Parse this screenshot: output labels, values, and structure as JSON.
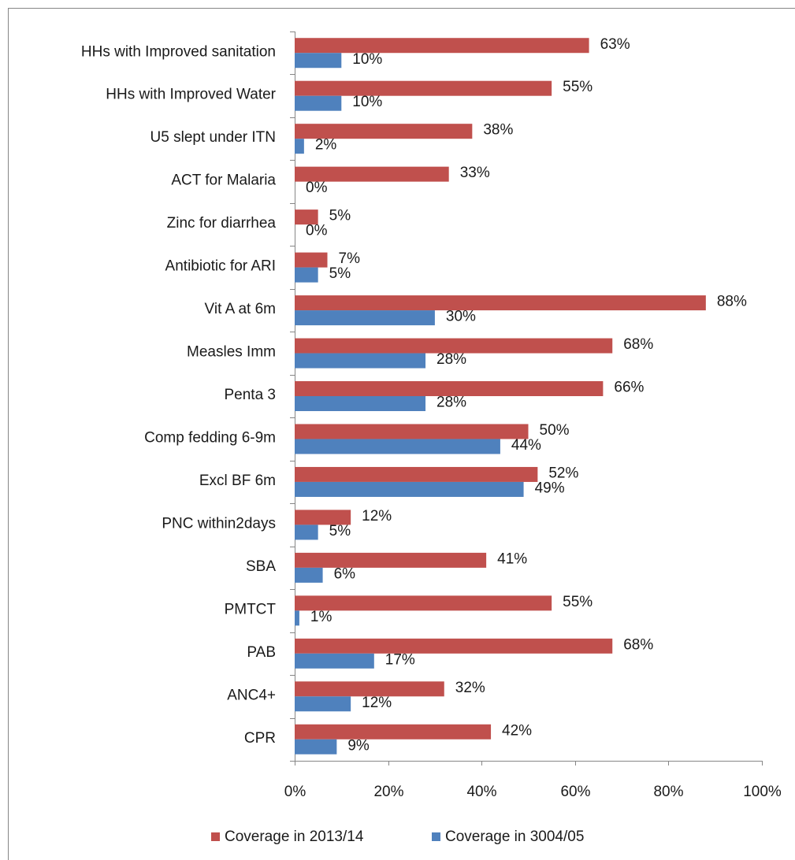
{
  "chart_data": {
    "type": "bar",
    "orientation": "horizontal",
    "categories": [
      "HHs with Improved sanitation",
      "HHs with Improved Water",
      "U5 slept under ITN",
      "ACT for Malaria",
      "Zinc for diarrhea",
      "Antibiotic for ARI",
      "Vit A at 6m",
      "Measles Imm",
      "Penta 3",
      "Comp fedding 6-9m",
      "Excl BF 6m",
      "PNC within2days",
      "SBA",
      "PMTCT",
      "PAB",
      "ANC4+",
      "CPR"
    ],
    "series": [
      {
        "name": "Coverage in 2013/14",
        "color": "#c0504d",
        "values": [
          63,
          55,
          38,
          33,
          5,
          7,
          88,
          68,
          66,
          50,
          52,
          12,
          41,
          55,
          68,
          32,
          42
        ],
        "value_labels": [
          "63%",
          "55%",
          "38%",
          "33%",
          "5%",
          "7%",
          "88%",
          "68%",
          "66%",
          "50%",
          "52%",
          "12%",
          "41%",
          "55%",
          "68%",
          "32%",
          "42%"
        ]
      },
      {
        "name": "Coverage in 3004/05",
        "color": "#4f81bd",
        "values": [
          10,
          10,
          2,
          0,
          0,
          5,
          30,
          28,
          28,
          44,
          49,
          5,
          6,
          1,
          17,
          12,
          9
        ],
        "value_labels": [
          "10%",
          "10%",
          "2%",
          "0%",
          "0%",
          "5%",
          "30%",
          "28%",
          "28%",
          "44%",
          "49%",
          "5%",
          "6%",
          "1%",
          "17%",
          "12%",
          "9%"
        ]
      }
    ],
    "xlim": [
      0,
      100
    ],
    "xticks": [
      {
        "value": 0,
        "label": "0%"
      },
      {
        "value": 20,
        "label": "20%"
      },
      {
        "value": 40,
        "label": "40%"
      },
      {
        "value": 60,
        "label": "60%"
      },
      {
        "value": 80,
        "label": "80%"
      },
      {
        "value": 100,
        "label": "100%"
      }
    ],
    "grid": false,
    "legend": "bottom"
  }
}
